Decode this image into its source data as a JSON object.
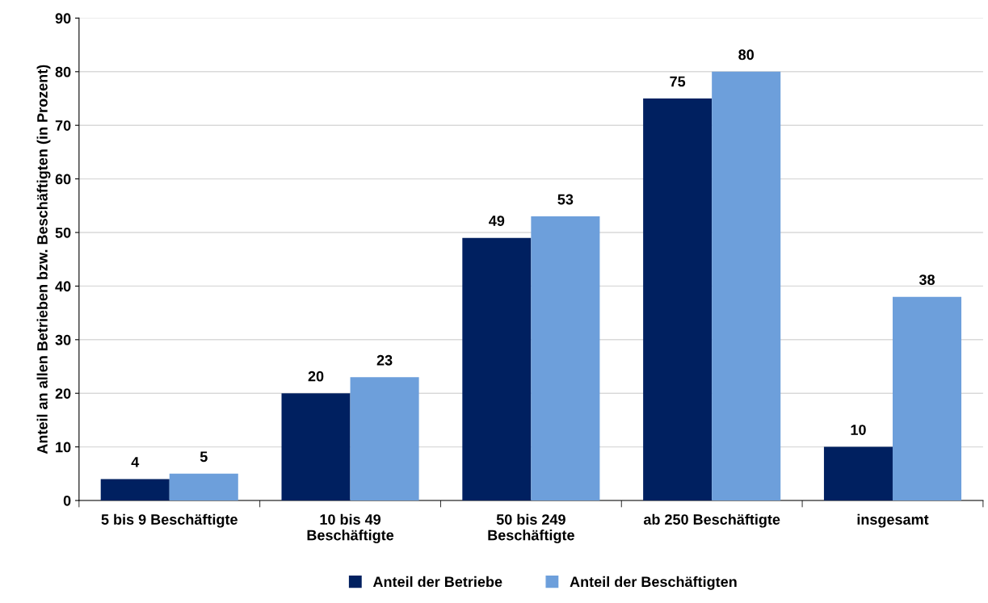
{
  "chart_data": {
    "type": "bar",
    "ylabel": "Anteil an allen Betrieben bzw. Beschäftigten (in Prozent)",
    "categories": [
      "5 bis 9 Beschäftigte",
      "10 bis 49\nBeschäftigte",
      "50 bis 249\nBeschäftigte",
      "ab 250 Beschäftigte",
      "insgesamt"
    ],
    "series": [
      {
        "name": "Anteil der Betriebe",
        "color": "#002060",
        "values": [
          4,
          20,
          49,
          75,
          10
        ]
      },
      {
        "name": "Anteil der Beschäftigten",
        "color": "#6d9fdb",
        "values": [
          5,
          23,
          53,
          80,
          38
        ]
      }
    ],
    "ylim": [
      0,
      90
    ],
    "yticks": [
      0,
      10,
      20,
      30,
      40,
      50,
      60,
      70,
      80,
      90
    ],
    "grid": "y",
    "legend": "bottom",
    "data_labels": true
  }
}
